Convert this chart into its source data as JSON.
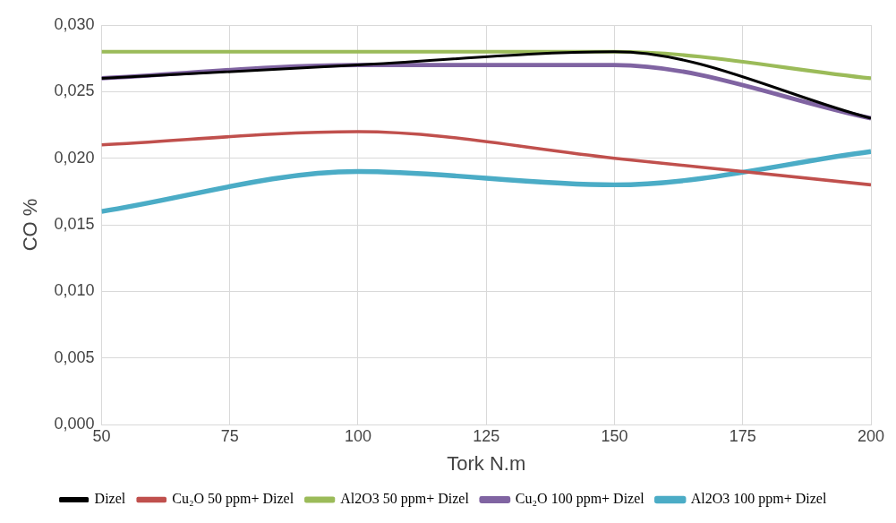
{
  "chart_data": {
    "type": "line",
    "xlabel": "Tork N.m",
    "ylabel": "CO %",
    "x": [
      50,
      100,
      150,
      200
    ],
    "series": [
      {
        "name": "Dizel",
        "color": "#000000",
        "values": [
          0.026,
          0.027,
          0.028,
          0.023
        ]
      },
      {
        "name": "Cu₂O 50 ppm+ Dizel",
        "color": "#c0504d",
        "values": [
          0.021,
          0.022,
          0.02,
          0.018
        ]
      },
      {
        "name": "Al2O3 50 ppm+ Dizel",
        "color": "#9bbb59",
        "values": [
          0.028,
          0.028,
          0.028,
          0.026
        ]
      },
      {
        "name": "Cu₂O 100 ppm+ Dizel",
        "color": "#8064a2",
        "values": [
          0.026,
          0.027,
          0.027,
          0.023
        ]
      },
      {
        "name": "Al2O3 100 ppm+ Dizel",
        "color": "#4bacc6",
        "values": [
          0.016,
          0.019,
          0.018,
          0.0205
        ]
      }
    ],
    "xlim": [
      50,
      200
    ],
    "xticks": [
      50,
      75,
      100,
      125,
      150,
      175,
      200
    ],
    "ylim": [
      0,
      0.03
    ],
    "yticks": [
      {
        "value": 0,
        "label": "0,000"
      },
      {
        "value": 0.005,
        "label": "0,005"
      },
      {
        "value": 0.01,
        "label": "0,010"
      },
      {
        "value": 0.015,
        "label": "0,015"
      },
      {
        "value": 0.02,
        "label": "0,020"
      },
      {
        "value": 0.025,
        "label": "0,025"
      },
      {
        "value": 0.03,
        "label": "0,030"
      }
    ],
    "grid": true,
    "legend": "bottom",
    "marker": "none",
    "line_style": "solid"
  }
}
